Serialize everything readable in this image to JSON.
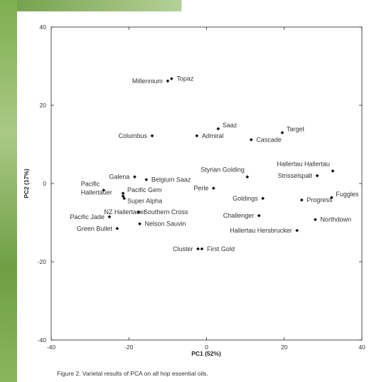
{
  "chart_data": {
    "type": "scatter",
    "title": "",
    "xlabel": "PC1 (52%)",
    "ylabel": "PC2 (17%)",
    "xlim": [
      -40,
      40
    ],
    "ylim": [
      -40,
      40
    ],
    "xticks": [
      -40,
      -20,
      0,
      20,
      40
    ],
    "yticks": [
      -40,
      -20,
      0,
      20,
      40
    ],
    "grid": false,
    "points": [
      {
        "label": "Topaz",
        "x": -9,
        "y": 26.8,
        "anchor": "right"
      },
      {
        "label": "Millennium",
        "x": -10,
        "y": 26.2,
        "anchor": "left"
      },
      {
        "label": "Saaz",
        "x": 3,
        "y": 14,
        "anchor": "right-up"
      },
      {
        "label": "Target",
        "x": 19.5,
        "y": 13,
        "anchor": "right-up"
      },
      {
        "label": "Columbus",
        "x": -14,
        "y": 12.2,
        "anchor": "left"
      },
      {
        "label": "Admiral",
        "x": -2.5,
        "y": 12.2,
        "anchor": "right"
      },
      {
        "label": "Cascade",
        "x": 11.5,
        "y": 11.2,
        "anchor": "right"
      },
      {
        "label": "Hallertau Hallertau",
        "x": 32.5,
        "y": 3.2,
        "anchor": "left-up"
      },
      {
        "label": "Strisselspalt",
        "x": 28.5,
        "y": 2.0,
        "anchor": "left"
      },
      {
        "label": "Styrian Golding",
        "x": 10.5,
        "y": 1.7,
        "anchor": "left-up"
      },
      {
        "label": "Galena",
        "x": -18.5,
        "y": 1.7,
        "anchor": "left"
      },
      {
        "label": "Belgium Saaz",
        "x": -15.5,
        "y": 1.0,
        "anchor": "right"
      },
      {
        "label": "Perle",
        "x": 1.8,
        "y": -1.2,
        "anchor": "left"
      },
      {
        "label": "Pacific Hallertauer",
        "x": -26.5,
        "y": -1.7,
        "anchor": "left-two"
      },
      {
        "label": "Pacific Gem",
        "x": -21.5,
        "y": -2.5,
        "anchor": "right-up"
      },
      {
        "label": "Super Alpha",
        "x": -21.5,
        "y": -3.2,
        "anchor": "right-down"
      },
      {
        "label": "NZ Hallertauer",
        "x": -21.2,
        "y": -3.8,
        "anchor": "right-down2"
      },
      {
        "label": "Goldings",
        "x": 14.5,
        "y": -3.8,
        "anchor": "left"
      },
      {
        "label": "Fuggles",
        "x": 32.2,
        "y": -3.6,
        "anchor": "right-up"
      },
      {
        "label": "Progress",
        "x": 24.5,
        "y": -4.2,
        "anchor": "right"
      },
      {
        "label": "Southern Cross",
        "x": -17.5,
        "y": -7.3,
        "anchor": "right"
      },
      {
        "label": "Challenger",
        "x": 13.5,
        "y": -8.2,
        "anchor": "left"
      },
      {
        "label": "Pacific Jade",
        "x": -25,
        "y": -8.5,
        "anchor": "left"
      },
      {
        "label": "Northdown",
        "x": 28,
        "y": -9.2,
        "anchor": "right"
      },
      {
        "label": "Nelson Sauvin",
        "x": -17.2,
        "y": -10.3,
        "anchor": "right"
      },
      {
        "label": "Green Bullet",
        "x": -23,
        "y": -11.5,
        "anchor": "left"
      },
      {
        "label": "Hallertau Hersbrucker",
        "x": 23.3,
        "y": -12,
        "anchor": "left"
      },
      {
        "label": "Cluster",
        "x": -2.2,
        "y": -16.7,
        "anchor": "left"
      },
      {
        "label": "First Gold",
        "x": -1.2,
        "y": -16.7,
        "anchor": "right"
      }
    ]
  },
  "caption": "Figure 2. Varietal results of PCA on all hop essential oils."
}
